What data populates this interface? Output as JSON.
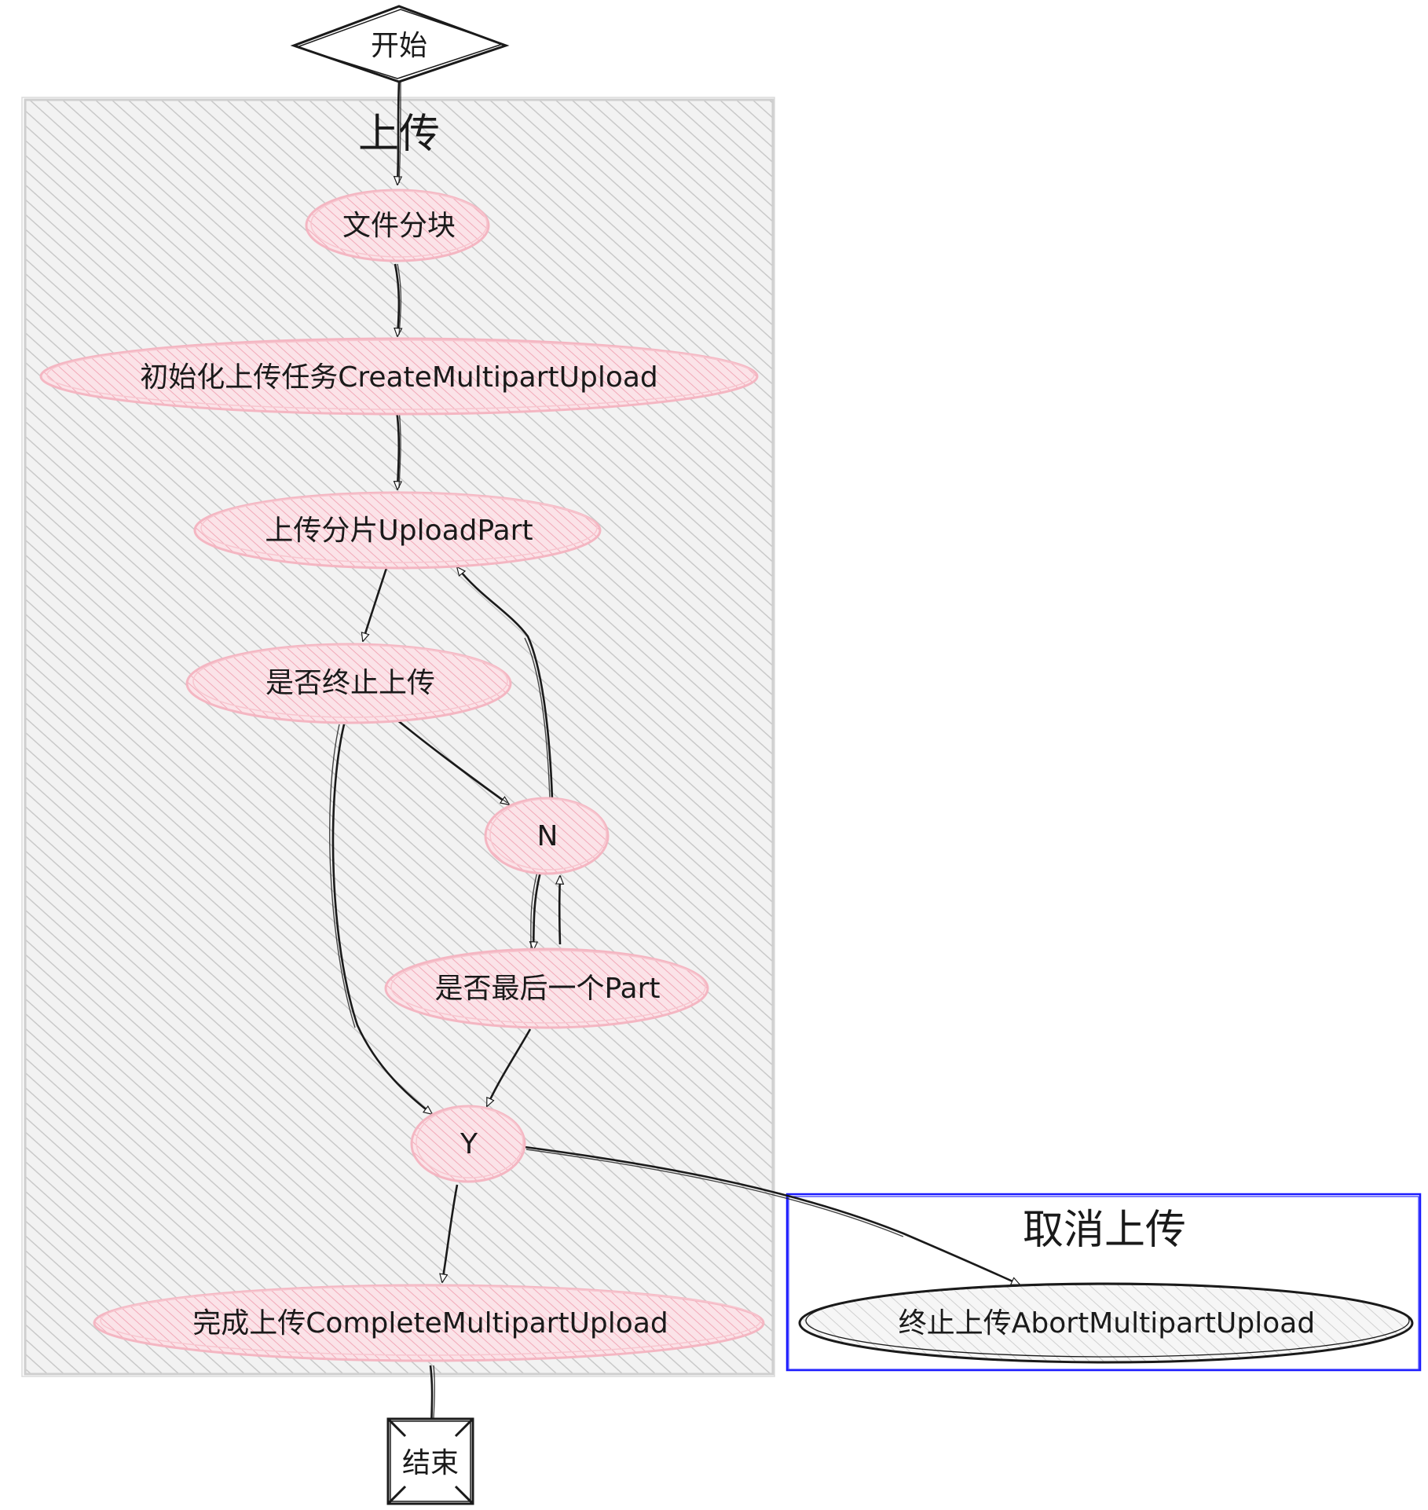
{
  "clusters": {
    "upload": {
      "title": "上传"
    },
    "cancel": {
      "title": "取消上传"
    }
  },
  "nodes": {
    "start": "开始",
    "split": "文件分块",
    "init": "初始化上传任务CreateMultipartUpload",
    "upload_part": "上传分片UploadPart",
    "is_abort": "是否终止上传",
    "n": "N",
    "is_last": "是否最后一个Part",
    "y": "Y",
    "complete": "完成上传CompleteMultipartUpload",
    "abort": "终止上传AbortMultipartUpload",
    "end": "结束"
  },
  "colors": {
    "upload_cluster_fill": "#d9d9d9",
    "upload_cluster_border": "#cfcfcf",
    "cancel_cluster_border": "#1a1aff",
    "node_stroke": "#f4b6c2",
    "node_hatch": "#f7c6cf",
    "edge": "#1a1a1a"
  }
}
